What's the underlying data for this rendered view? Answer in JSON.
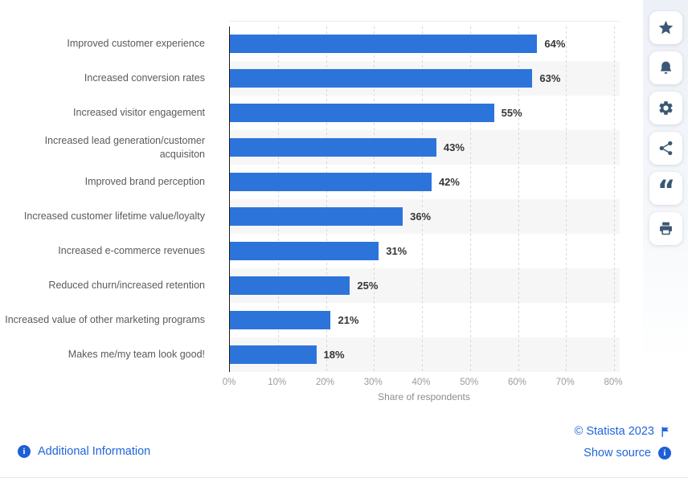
{
  "chart_data": {
    "type": "bar",
    "orientation": "horizontal",
    "categories": [
      "Improved customer experience",
      "Increased conversion rates",
      "Increased visitor engagement",
      "Increased lead generation/customer acquisiton",
      "Improved brand perception",
      "Increased customer lifetime value/loyalty",
      "Increased e-commerce revenues",
      "Reduced churn/increased retention",
      "Increased value of other marketing programs",
      "Makes me/my team look good!"
    ],
    "values": [
      64,
      63,
      55,
      43,
      42,
      36,
      31,
      25,
      21,
      18
    ],
    "value_labels": [
      "64%",
      "63%",
      "55%",
      "43%",
      "42%",
      "36%",
      "31%",
      "25%",
      "21%",
      "18%"
    ],
    "xlabel": "Share of respondents",
    "x_ticks": [
      0,
      10,
      20,
      30,
      40,
      50,
      60,
      70,
      80
    ],
    "x_tick_labels": [
      "0%",
      "10%",
      "20%",
      "30%",
      "40%",
      "50%",
      "60%",
      "70%",
      "80%"
    ],
    "xlim": [
      0,
      80
    ],
    "grid": "vertical-dashed",
    "legend": "none",
    "bar_color": "#2d74da",
    "row_band_color": "#f6f6f7"
  },
  "sidebar": {
    "buttons": [
      {
        "icon": "star-icon"
      },
      {
        "icon": "bell-icon"
      },
      {
        "icon": "gear-icon"
      },
      {
        "icon": "share-icon"
      },
      {
        "icon": "quote-icon"
      },
      {
        "icon": "print-icon"
      }
    ]
  },
  "footer": {
    "additional_info_label": "Additional Information",
    "copyright": "© Statista 2023",
    "show_source_label": "Show source"
  },
  "colors": {
    "bar": "#2d74da",
    "link": "#1f64dd",
    "toolbar_icon": "#3b5875",
    "axis": "#191919",
    "category_label": "#595a5c",
    "value_label": "#363636",
    "tick_label": "#9b9b9b"
  }
}
